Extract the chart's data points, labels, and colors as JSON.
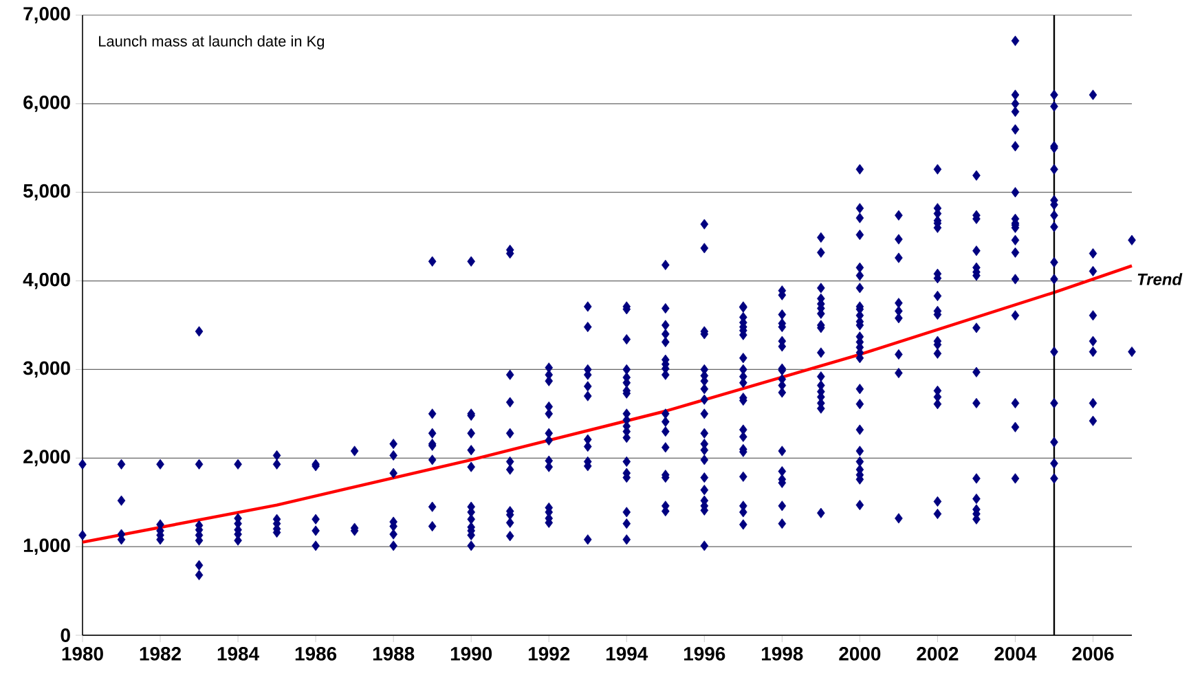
{
  "chart_data": {
    "type": "scatter",
    "annotations": [
      "Launch mass at launch date in Kg"
    ],
    "xlim": [
      1980,
      2007
    ],
    "xticks": [
      1980,
      1982,
      1984,
      1986,
      1988,
      1990,
      1992,
      1994,
      1996,
      1998,
      2000,
      2002,
      2004,
      2006
    ],
    "ylim": [
      0,
      7000
    ],
    "yticks": [
      {
        "value": 0,
        "label": "0"
      },
      {
        "value": 1000,
        "label": "1,000"
      },
      {
        "value": 2000,
        "label": "2,000"
      },
      {
        "value": 3000,
        "label": "3,000"
      },
      {
        "value": 4000,
        "label": "4,000"
      },
      {
        "value": 5000,
        "label": "5,000"
      },
      {
        "value": 6000,
        "label": "6,000"
      },
      {
        "value": 7000,
        "label": "7,000"
      }
    ],
    "grid": "y",
    "ref_lines": [
      {
        "axis": "x",
        "value": 2005,
        "color": "#000000"
      }
    ],
    "series": [
      {
        "color": "#000080",
        "marker": "diamond",
        "x": [
          1980,
          1980,
          1981,
          1981,
          1981,
          1981,
          1982,
          1982,
          1982,
          1982,
          1982,
          1983,
          1983,
          1983,
          1983,
          1983,
          1983,
          1983,
          1983,
          1984,
          1984,
          1984,
          1984,
          1984,
          1984,
          1985,
          1985,
          1985,
          1985,
          1985,
          1985,
          1986,
          1986,
          1986,
          1986,
          1986,
          1987,
          1987,
          1987,
          1988,
          1988,
          1988,
          1988,
          1988,
          1988,
          1988,
          1989,
          1989,
          1989,
          1989,
          1989,
          1989,
          1989,
          1989,
          1990,
          1990,
          1990,
          1990,
          1990,
          1990,
          1990,
          1990,
          1990,
          1990,
          1990,
          1990,
          1990,
          1991,
          1991,
          1991,
          1991,
          1991,
          1991,
          1991,
          1991,
          1991,
          1991,
          1991,
          1992,
          1992,
          1992,
          1992,
          1992,
          1992,
          1992,
          1992,
          1992,
          1992,
          1992,
          1992,
          1992,
          1993,
          1993,
          1993,
          1993,
          1993,
          1993,
          1993,
          1993,
          1993,
          1993,
          1993,
          1994,
          1994,
          1994,
          1994,
          1994,
          1994,
          1994,
          1994,
          1994,
          1994,
          1994,
          1994,
          1994,
          1994,
          1994,
          1994,
          1994,
          1994,
          1994,
          1995,
          1995,
          1995,
          1995,
          1995,
          1995,
          1995,
          1995,
          1995,
          1995,
          1995,
          1995,
          1995,
          1995,
          1995,
          1995,
          1995,
          1996,
          1996,
          1996,
          1996,
          1996,
          1996,
          1996,
          1996,
          1996,
          1996,
          1996,
          1996,
          1996,
          1996,
          1996,
          1996,
          1996,
          1996,
          1996,
          1996,
          1997,
          1997,
          1997,
          1997,
          1997,
          1997,
          1997,
          1997,
          1997,
          1997,
          1997,
          1997,
          1997,
          1997,
          1997,
          1997,
          1997,
          1997,
          1997,
          1997,
          1997,
          1998,
          1998,
          1998,
          1998,
          1998,
          1998,
          1998,
          1998,
          1998,
          1998,
          1998,
          1998,
          1998,
          1998,
          1998,
          1998,
          1998,
          1998,
          1999,
          1999,
          1999,
          1999,
          1999,
          1999,
          1999,
          1999,
          1999,
          1999,
          1999,
          1999,
          1999,
          1999,
          1999,
          1999,
          1999,
          2000,
          2000,
          2000,
          2000,
          2000,
          2000,
          2000,
          2000,
          2000,
          2000,
          2000,
          2000,
          2000,
          2000,
          2000,
          2000,
          2000,
          2000,
          2000,
          2000,
          2000,
          2000,
          2000,
          2000,
          2000,
          2000,
          2001,
          2001,
          2001,
          2001,
          2001,
          2001,
          2001,
          2001,
          2001,
          2002,
          2002,
          2002,
          2002,
          2002,
          2002,
          2002,
          2002,
          2002,
          2002,
          2002,
          2002,
          2002,
          2002,
          2002,
          2002,
          2002,
          2002,
          2002,
          2003,
          2003,
          2003,
          2003,
          2003,
          2003,
          2003,
          2003,
          2003,
          2003,
          2003,
          2003,
          2003,
          2003,
          2003,
          2004,
          2004,
          2004,
          2004,
          2004,
          2004,
          2004,
          2004,
          2004,
          2004,
          2004,
          2004,
          2004,
          2004,
          2004,
          2004,
          2004,
          2004,
          2005,
          2005,
          2005,
          2005,
          2005,
          2005,
          2005,
          2005,
          2005,
          2005,
          2005,
          2005,
          2005,
          2005,
          2005,
          2005,
          2006,
          2006,
          2006,
          2006,
          2006,
          2006,
          2006,
          2006,
          2007,
          2007
        ],
        "values": [
          1930,
          1130,
          1930,
          1520,
          1140,
          1080,
          1930,
          1250,
          1180,
          1130,
          1080,
          1930,
          3430,
          1240,
          1190,
          1130,
          1070,
          790,
          680,
          1930,
          1320,
          1260,
          1190,
          1140,
          1070,
          2030,
          1930,
          1310,
          1260,
          1200,
          1160,
          1930,
          1910,
          1310,
          1180,
          1010,
          2080,
          1210,
          1180,
          2160,
          2030,
          1830,
          1280,
          1230,
          1140,
          1010,
          4220,
          2500,
          2280,
          2160,
          2140,
          1980,
          1450,
          1230,
          4220,
          2500,
          2480,
          2280,
          2090,
          1900,
          1450,
          1390,
          1310,
          1220,
          1180,
          1130,
          1010,
          4350,
          4310,
          2940,
          2630,
          2280,
          1960,
          1870,
          1400,
          1360,
          1270,
          1120,
          3020,
          2940,
          2870,
          2580,
          2500,
          2280,
          2200,
          1970,
          1900,
          1440,
          1390,
          1320,
          1270,
          3710,
          3480,
          3000,
          2940,
          2810,
          2700,
          2210,
          2130,
          1960,
          1910,
          1080,
          3710,
          3680,
          3340,
          3000,
          2910,
          2850,
          2760,
          2730,
          2500,
          2430,
          2360,
          2300,
          2230,
          1960,
          1830,
          1780,
          1390,
          1260,
          1080,
          4180,
          3690,
          3500,
          3400,
          3310,
          3110,
          3060,
          3010,
          2940,
          2500,
          2410,
          2300,
          2120,
          1810,
          1780,
          1460,
          1400,
          4640,
          4370,
          3430,
          3400,
          3000,
          2930,
          2870,
          2780,
          2660,
          2500,
          2280,
          2160,
          2090,
          1980,
          1780,
          1640,
          1520,
          1460,
          1410,
          1010,
          3710,
          3700,
          3590,
          3530,
          3480,
          3440,
          3390,
          3130,
          3000,
          2920,
          2850,
          2680,
          2650,
          2320,
          2240,
          2100,
          2070,
          1790,
          1460,
          1390,
          1250,
          3890,
          3840,
          3620,
          3520,
          3480,
          3320,
          3260,
          3010,
          2990,
          2890,
          2820,
          2740,
          2080,
          1850,
          1760,
          1720,
          1460,
          1260,
          4490,
          4320,
          3920,
          3800,
          3740,
          3690,
          3630,
          3500,
          3470,
          3190,
          2920,
          2820,
          2750,
          2690,
          2620,
          2560,
          1380,
          5260,
          4820,
          4710,
          4520,
          4150,
          4060,
          3920,
          3710,
          3680,
          3610,
          3540,
          3500,
          3370,
          3310,
          3250,
          3190,
          3130,
          2780,
          2610,
          2320,
          2080,
          1960,
          1870,
          1810,
          1760,
          1470,
          4740,
          4470,
          4260,
          3750,
          3660,
          3580,
          3170,
          2960,
          1320,
          5260,
          4820,
          4760,
          4680,
          4650,
          4600,
          4080,
          4030,
          3830,
          3660,
          3620,
          3320,
          3280,
          3180,
          2760,
          2690,
          2610,
          1510,
          1370,
          5190,
          4740,
          4700,
          4340,
          4150,
          4100,
          4060,
          3470,
          2970,
          2620,
          1770,
          1540,
          1420,
          1370,
          1310,
          6710,
          6100,
          6000,
          5910,
          5710,
          5520,
          5000,
          4700,
          4650,
          4630,
          4600,
          4460,
          4320,
          4020,
          3610,
          2620,
          2350,
          1770,
          6100,
          5970,
          5520,
          5500,
          5260,
          4910,
          4860,
          4740,
          4610,
          4210,
          4020,
          3200,
          2620,
          2180,
          1940,
          1770,
          6100,
          4310,
          4110,
          3610,
          3320,
          3200,
          2620,
          2420,
          4460,
          3200
        ]
      },
      {
        "type": "line",
        "name": "Trend",
        "color": "#ff0000",
        "marker": "none",
        "line_style": "solid",
        "x": [
          1980,
          1985,
          1990,
          1995,
          2000,
          2005,
          2007
        ],
        "values": [
          1050,
          1470,
          1980,
          2530,
          3170,
          3870,
          4170
        ]
      }
    ]
  }
}
